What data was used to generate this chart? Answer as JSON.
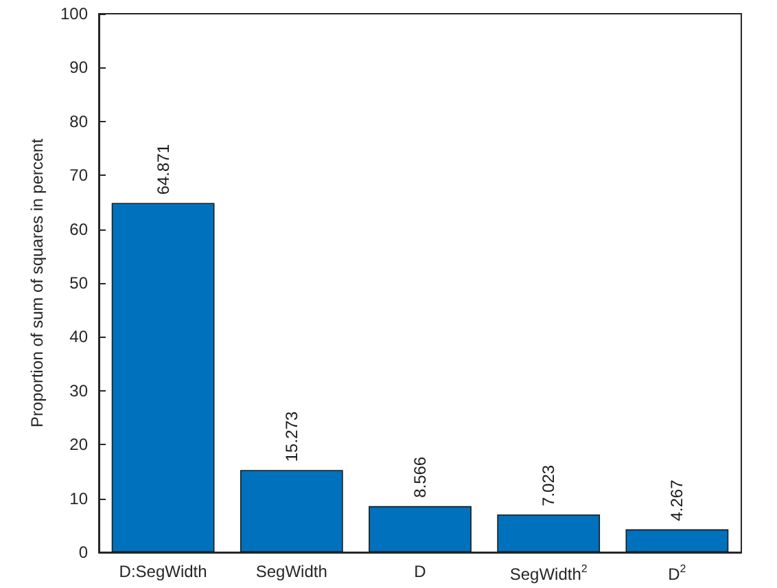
{
  "chart_data": {
    "type": "bar",
    "ylabel": "Proportion of sum of squares in percent",
    "categories": [
      "D:SegWidth",
      "SegWidth",
      "D",
      "SegWidth$^{2}$",
      "D$^{2}$"
    ],
    "values": [
      64.871,
      15.273,
      8.566,
      7.023,
      4.267
    ],
    "color": "#0072bd",
    "ylim": [
      0,
      100
    ],
    "yticks": [
      0,
      10,
      20,
      30,
      40,
      50,
      60,
      70,
      80,
      90,
      100
    ],
    "grid": false,
    "data_labels": true
  }
}
